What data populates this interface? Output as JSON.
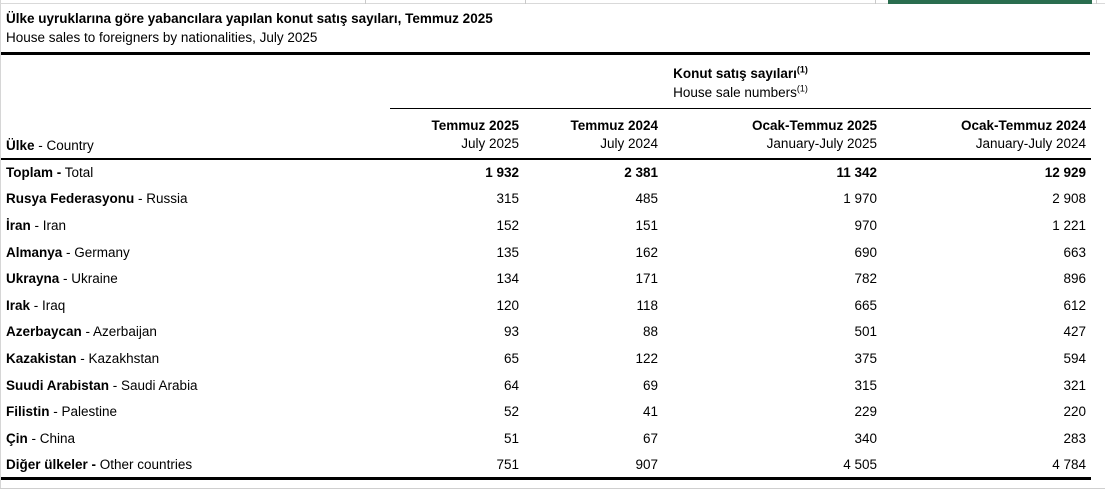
{
  "header": {
    "title_tr": "Ülke uyruklarına göre yabancılara yapılan konut satış sayıları, Temmuz 2025",
    "title_en": "House sales to foreigners by nationalities, July 2025"
  },
  "colors": {
    "excel_green": "#2a6d4f",
    "gridline": "#d6d6d6"
  },
  "table": {
    "spanner": {
      "tr": "Konut satış sayıları",
      "en": "House sale numbers",
      "footnote_marker": "(1)"
    },
    "country_header": {
      "tr": "Ülke",
      "en": " - Country"
    },
    "columns": [
      {
        "tr": "Temmuz 2025",
        "en": "July 2025"
      },
      {
        "tr": "Temmuz 2024",
        "en": "July 2024"
      },
      {
        "tr": "Ocak-Temmuz 2025",
        "en": "January-July 2025"
      },
      {
        "tr": "Ocak-Temmuz 2024",
        "en": "January-July 2024"
      }
    ],
    "rows": [
      {
        "tr": "Toplam -",
        "en": " Total",
        "bold_values": true,
        "values": [
          "1 932",
          "2 381",
          "11 342",
          "12 929"
        ]
      },
      {
        "tr": "Rusya Federasyonu",
        "en": " - Russia",
        "bold_values": false,
        "values": [
          "315",
          "485",
          "1 970",
          "2 908"
        ]
      },
      {
        "tr": "İran",
        "en": " - Iran",
        "bold_values": false,
        "values": [
          "152",
          "151",
          "970",
          "1 221"
        ]
      },
      {
        "tr": "Almanya",
        "en": " - Germany",
        "bold_values": false,
        "values": [
          "135",
          "162",
          "690",
          "663"
        ]
      },
      {
        "tr": "Ukrayna",
        "en": " - Ukraine",
        "bold_values": false,
        "values": [
          "134",
          "171",
          "782",
          "896"
        ]
      },
      {
        "tr": "Irak",
        "en": " - Iraq",
        "bold_values": false,
        "values": [
          "120",
          "118",
          "665",
          "612"
        ]
      },
      {
        "tr": "Azerbaycan",
        "en": " - Azerbaijan",
        "bold_values": false,
        "values": [
          "93",
          "88",
          "501",
          "427"
        ]
      },
      {
        "tr": "Kazakistan",
        "en": " - Kazakhstan",
        "bold_values": false,
        "values": [
          "65",
          "122",
          "375",
          "594"
        ]
      },
      {
        "tr": "Suudi Arabistan",
        "en": " - Saudi Arabia",
        "bold_values": false,
        "values": [
          "64",
          "69",
          "315",
          "321"
        ]
      },
      {
        "tr": "Filistin",
        "en": " - Palestine",
        "bold_values": false,
        "values": [
          "52",
          "41",
          "229",
          "220"
        ]
      },
      {
        "tr": "Çin",
        "en": " - China",
        "bold_values": false,
        "values": [
          "51",
          "67",
          "340",
          "283"
        ]
      },
      {
        "tr": "Diğer ülkeler -",
        "en": " Other countries",
        "bold_values": false,
        "values": [
          "751",
          "907",
          "4 505",
          "4 784"
        ]
      }
    ]
  }
}
